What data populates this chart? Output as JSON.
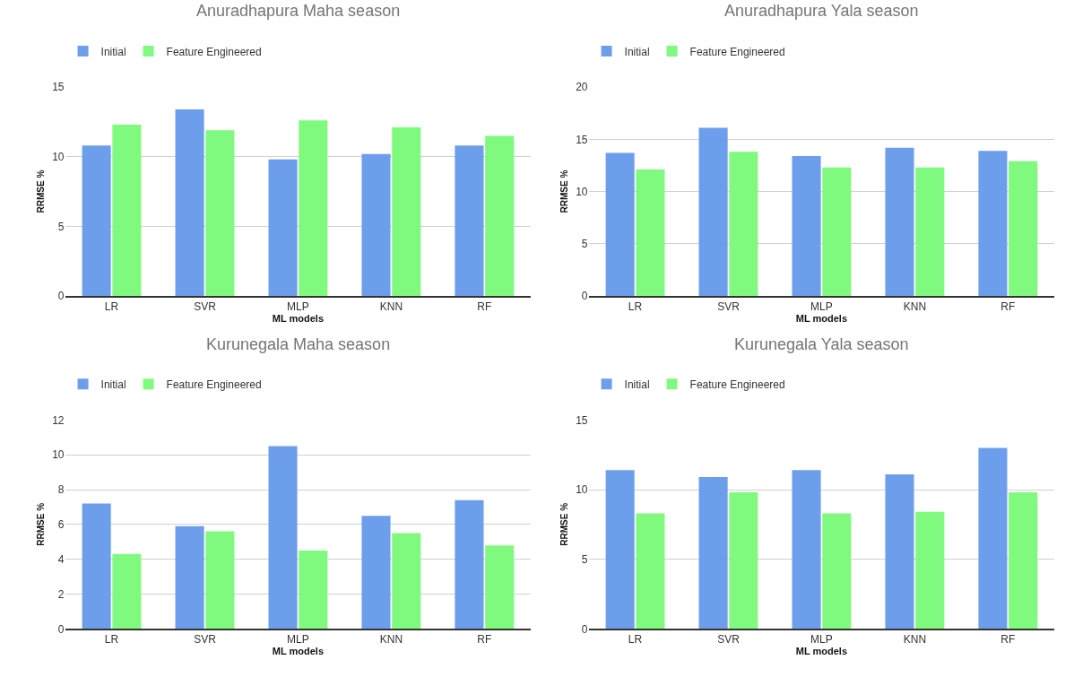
{
  "chart_data": [
    {
      "type": "bar",
      "title": "Anuradhapura Maha season",
      "xlabel": "ML models",
      "ylabel": "RRMSE %",
      "categories": [
        "LR",
        "SVR",
        "MLP",
        "KNN",
        "RF"
      ],
      "series": [
        {
          "name": "Initial",
          "color": "#6d9eeb",
          "values": [
            10.8,
            13.4,
            9.8,
            10.2,
            10.8
          ]
        },
        {
          "name": "Feature Engineered",
          "color": "#80f97f",
          "values": [
            12.3,
            11.9,
            12.6,
            12.1,
            11.5
          ]
        }
      ],
      "ylim": [
        0,
        15
      ],
      "yticks": [
        0,
        5,
        10,
        15
      ],
      "grid": "y",
      "legend": "top left"
    },
    {
      "type": "bar",
      "title": "Anuradhapura Yala season",
      "xlabel": "ML models",
      "ylabel": "RRMSE %",
      "categories": [
        "LR",
        "SVR",
        "MLP",
        "KNN",
        "RF"
      ],
      "series": [
        {
          "name": "Initial",
          "color": "#6d9eeb",
          "values": [
            13.7,
            16.1,
            13.4,
            14.2,
            13.9
          ]
        },
        {
          "name": "Feature Engineered",
          "color": "#80f97f",
          "values": [
            12.1,
            13.8,
            12.3,
            12.3,
            12.9
          ]
        }
      ],
      "ylim": [
        0,
        20
      ],
      "yticks": [
        0,
        5,
        10,
        15,
        20
      ],
      "grid": "y",
      "legend": "top left"
    },
    {
      "type": "bar",
      "title": "Kurunegala Maha season",
      "xlabel": "ML models",
      "ylabel": "RRMSE %",
      "categories": [
        "LR",
        "SVR",
        "MLP",
        "KNN",
        "RF"
      ],
      "series": [
        {
          "name": "Initial",
          "color": "#6d9eeb",
          "values": [
            7.2,
            5.9,
            10.5,
            6.5,
            7.4
          ]
        },
        {
          "name": "Feature Engineered",
          "color": "#80f97f",
          "values": [
            4.3,
            5.6,
            4.5,
            5.5,
            4.8
          ]
        }
      ],
      "ylim": [
        0,
        12
      ],
      "yticks": [
        0,
        2,
        4,
        6,
        8,
        10,
        12
      ],
      "grid": "y",
      "legend": "top left"
    },
    {
      "type": "bar",
      "title": "Kurunegala Yala season",
      "xlabel": "ML models",
      "ylabel": "RRMSE %",
      "categories": [
        "LR",
        "SVR",
        "MLP",
        "KNN",
        "RF"
      ],
      "series": [
        {
          "name": "Initial",
          "color": "#6d9eeb",
          "values": [
            11.4,
            10.9,
            11.4,
            11.1,
            13.0
          ]
        },
        {
          "name": "Feature Engineered",
          "color": "#80f97f",
          "values": [
            8.3,
            9.8,
            8.3,
            8.4,
            9.8
          ]
        }
      ],
      "ylim": [
        0,
        15
      ],
      "yticks": [
        0,
        5,
        10,
        15
      ],
      "grid": "y",
      "legend": "top left"
    }
  ]
}
